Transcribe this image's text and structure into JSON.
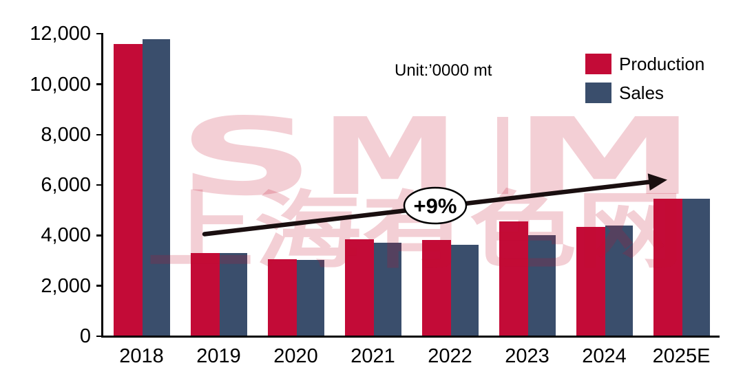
{
  "chart_data": {
    "type": "bar",
    "title": "",
    "unit_note": "Unit:’0000 mt",
    "categories": [
      "2018",
      "2019",
      "2020",
      "2021",
      "2022",
      "2023",
      "2024",
      "2025E"
    ],
    "series": [
      {
        "name": "Production",
        "color": "#C30B37",
        "values": [
          11600,
          3300,
          3060,
          3840,
          3830,
          4550,
          4350,
          5450
        ]
      },
      {
        "name": "Sales",
        "color": "#3A4E6C",
        "values": [
          11800,
          3300,
          3030,
          3700,
          3640,
          4000,
          4400,
          5460
        ]
      }
    ],
    "xlabel": "",
    "ylabel": "",
    "ylim": [
      0,
      12000
    ],
    "yticks": {
      "values": [
        0,
        2000,
        4000,
        6000,
        8000,
        10000,
        12000
      ],
      "labels": [
        "0",
        "2,000",
        "4,000",
        "6,000",
        "8,000",
        "10,000",
        "12,000"
      ]
    },
    "grid": false,
    "legend_position": "top-right",
    "annotation": {
      "label": "+9%",
      "type": "trend-arrow",
      "from_category": "2019",
      "to_category": "2025E",
      "arrow_color": "#1A0F10"
    }
  },
  "watermark": {
    "letters": [
      "S",
      "M",
      "M"
    ],
    "subtitle": "上海有色网",
    "color": "#C3102E",
    "opacity": "0.2"
  }
}
